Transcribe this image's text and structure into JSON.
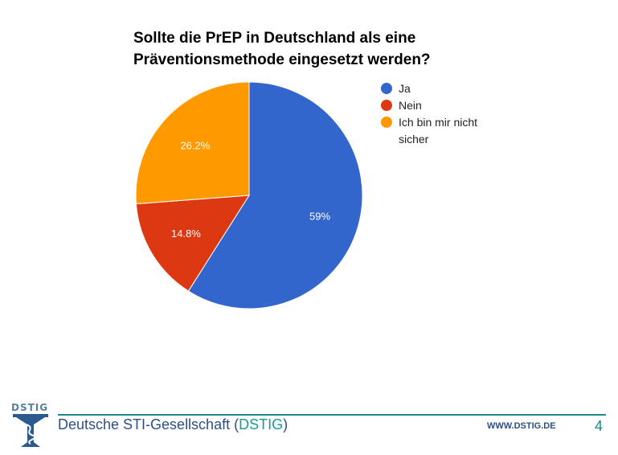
{
  "chart_data": {
    "type": "pie",
    "title_lines": [
      "Sollte die PrEP in Deutschland als eine",
      "Präventionsmethode eingesetzt werden?"
    ],
    "categories": [
      "Ja",
      "Nein",
      "Ich bin mir nicht sicher"
    ],
    "values": [
      59,
      14.8,
      26.2
    ],
    "data_labels": [
      "59%",
      "14.8%",
      "26.2%"
    ],
    "colors": [
      "#3366cc",
      "#dc3912",
      "#ff9900"
    ],
    "legend_position": "right"
  },
  "legend": {
    "items": [
      "Ja",
      "Nein",
      "Ich bin mir nicht sicher"
    ]
  },
  "footer": {
    "org_prefix": "Deutsche STI-Gesellschaft (",
    "org_abbr": "DSTIG",
    "org_suffix": ")",
    "website": "WWW.DSTIG.DE",
    "page_number": "4",
    "logo_text": "DSTIG",
    "rule_color": "#1a8a8a",
    "text_color": "#2d4f86"
  }
}
